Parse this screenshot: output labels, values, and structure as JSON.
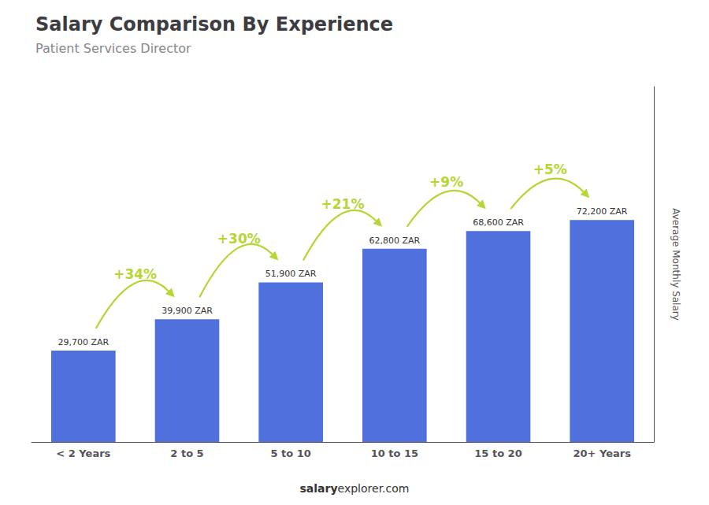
{
  "chart_data": {
    "type": "bar",
    "title": "Salary Comparison By Experience",
    "subtitle": "Patient Services Director",
    "categories": [
      "< 2 Years",
      "2 to 5",
      "5 to 10",
      "10 to 15",
      "15 to 20",
      "20+ Years"
    ],
    "values": [
      29700,
      39900,
      51900,
      62800,
      68600,
      72200
    ],
    "value_labels": [
      "29,700 ZAR",
      "39,900 ZAR",
      "51,900 ZAR",
      "62,800 ZAR",
      "68,600 ZAR",
      "72,200 ZAR"
    ],
    "data_labels": true,
    "annotations": [
      "+34%",
      "+30%",
      "+21%",
      "+9%",
      "+5%"
    ],
    "ylabel": "Average Monthly Salary",
    "footer": [
      "salary",
      "explorer.com"
    ],
    "ylim": [
      0,
      115520
    ],
    "grid": false,
    "tick_labels": "x"
  }
}
